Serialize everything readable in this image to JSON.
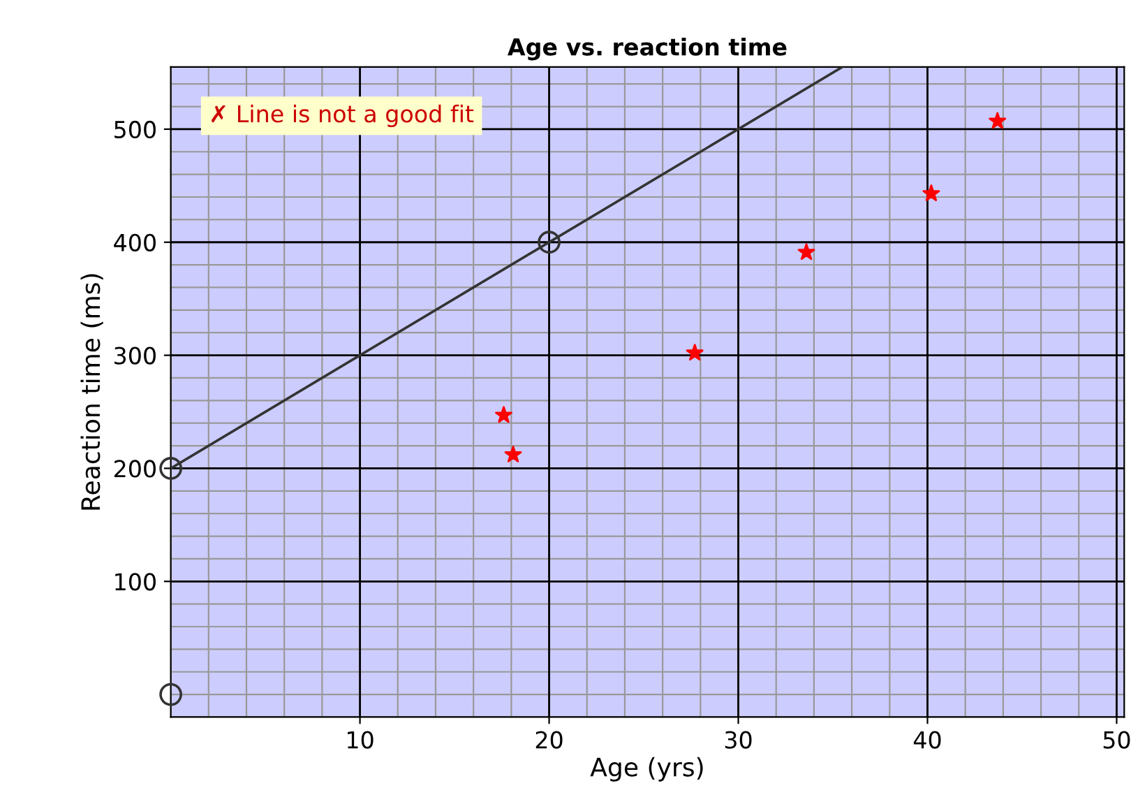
{
  "chart_data": {
    "type": "scatter",
    "title": "Age vs. reaction time",
    "xlabel": "Age (yrs)",
    "ylabel": "Reaction time (ms)",
    "series": [
      {
        "color": "#ff0000",
        "marker": "star",
        "x": [
          17.6,
          18.1,
          27.7,
          33.6,
          40.2,
          43.7
        ],
        "values": [
          247,
          212,
          302,
          391,
          443,
          507
        ]
      },
      {
        "type": "line",
        "color": "#333333",
        "marker": "none",
        "x": [
          0,
          35.5
        ],
        "values": [
          200,
          555
        ]
      },
      {
        "color": "#333333",
        "marker": "circle",
        "x": [
          0,
          20,
          0
        ],
        "values": [
          200,
          400,
          0
        ]
      }
    ],
    "annotations": [
      "✗ Line is not a good fit"
    ],
    "xlim": [
      0,
      50.4
    ],
    "ylim": [
      -20,
      555
    ],
    "xticks": [
      10,
      20,
      30,
      40,
      50
    ],
    "yticks": [
      100,
      200,
      300,
      400,
      500
    ],
    "grid": true
  }
}
